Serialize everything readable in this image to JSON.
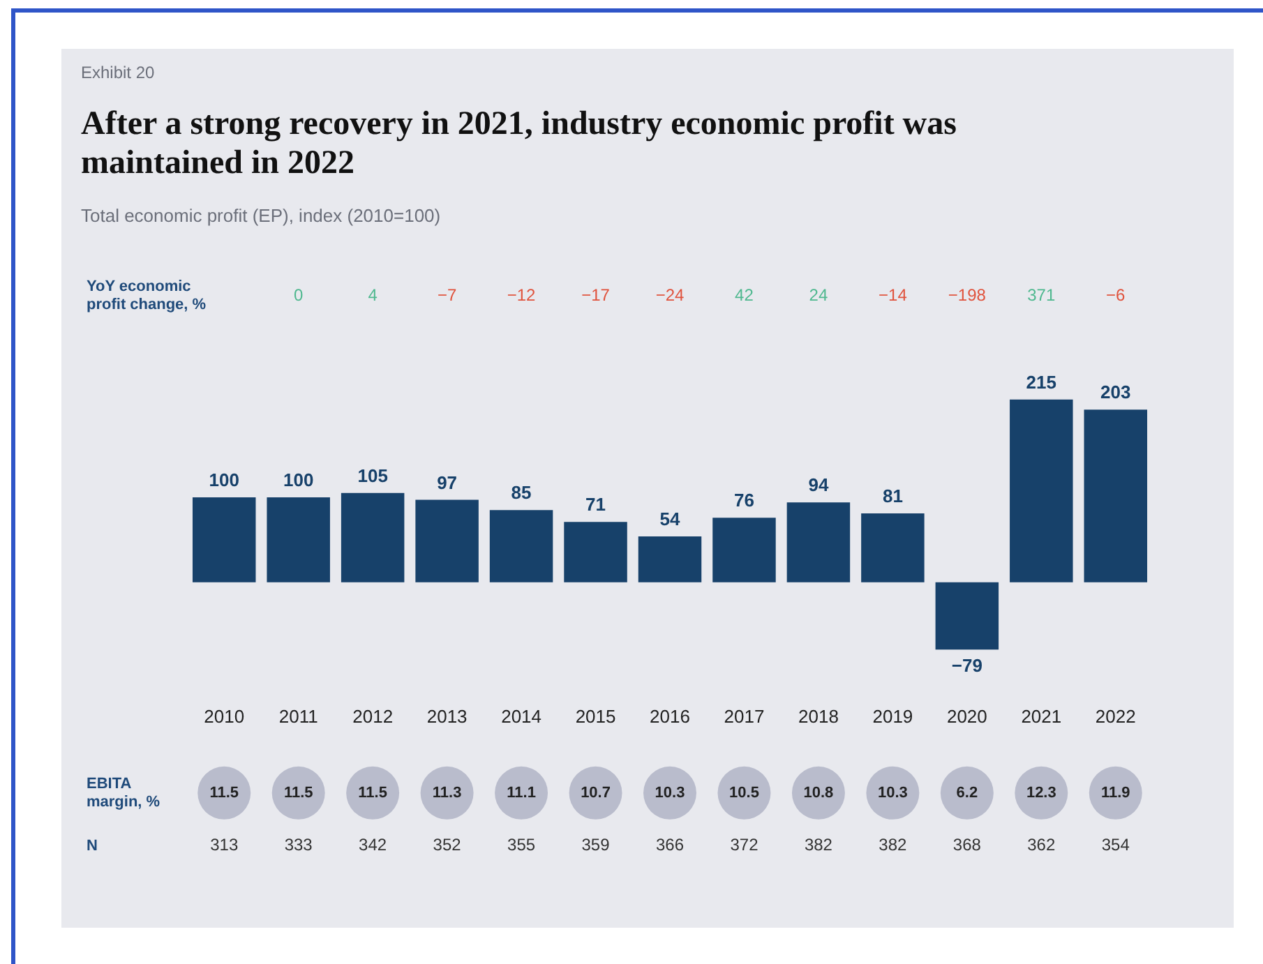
{
  "chart_data": {
    "type": "bar",
    "title": "After a strong recovery in 2021, industry economic profit was maintained in 2022",
    "subtitle": "Total economic profit (EP), index (2010=100)",
    "categories": [
      "2010",
      "2011",
      "2012",
      "2013",
      "2014",
      "2015",
      "2016",
      "2017",
      "2018",
      "2019",
      "2020",
      "2021",
      "2022"
    ],
    "values": [
      100,
      100,
      105,
      97,
      85,
      71,
      54,
      76,
      94,
      81,
      -79,
      215,
      203
    ],
    "color": "#17416a",
    "data_labels": true,
    "annotations": [
      "Exhibit 20",
      "YoY economic profit change, %",
      "0",
      "4",
      "−7",
      "−12",
      "−17",
      "−24",
      "42",
      "24",
      "−14",
      "−198",
      "371",
      "−6",
      "EBITA margin, %",
      "11.5",
      "11.5",
      "11.5",
      "11.3",
      "11.1",
      "10.7",
      "10.3",
      "10.5",
      "10.8",
      "10.3",
      "6.2",
      "12.3",
      "11.9",
      "N",
      "313",
      "333",
      "342",
      "352",
      "355",
      "359",
      "366",
      "372",
      "382",
      "382",
      "368",
      "362",
      "354"
    ]
  }
}
